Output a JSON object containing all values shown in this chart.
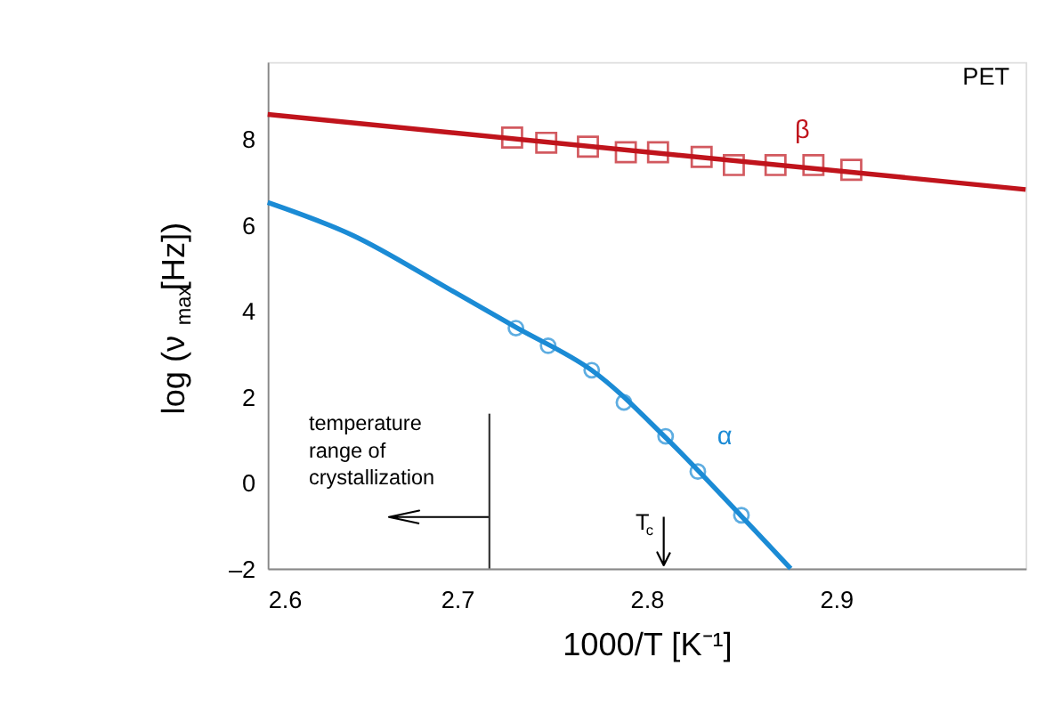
{
  "chart_data": {
    "type": "scatter",
    "xlabel": "1000/T [K⁻¹]",
    "ylabel": "log (ν$_{max}$[Hz])",
    "xlim": [
      2.6,
      3.0
    ],
    "xticks": [
      2.6,
      2.7,
      2.8,
      2.9
    ],
    "ylim": [
      -2,
      9.8
    ],
    "yticks": [
      {
        "value": -2,
        "label": "–2"
      },
      0,
      2,
      4,
      6,
      8
    ],
    "grid": false,
    "legend": false,
    "series": [
      {
        "name": "β",
        "marker": "square",
        "color": "#c0141c",
        "x": [
          2.729,
          2.747,
          2.769,
          2.789,
          2.806,
          2.829,
          2.846,
          2.868,
          2.888,
          2.908
        ],
        "values": [
          8.04,
          7.92,
          7.83,
          7.7,
          7.7,
          7.59,
          7.4,
          7.4,
          7.4,
          7.29
        ]
      },
      {
        "type": "line",
        "color": "#c0141c",
        "x": [
          2.6,
          3.0
        ],
        "values": [
          8.58,
          6.83
        ]
      },
      {
        "name": "α",
        "marker": "circle",
        "color": "#1b8bd5",
        "x": [
          2.731,
          2.748,
          2.771,
          2.788,
          2.81,
          2.827,
          2.85
        ],
        "values": [
          3.6,
          3.19,
          2.62,
          1.87,
          1.08,
          0.26,
          -0.76
        ]
      },
      {
        "type": "line",
        "color": "#1b8bd5",
        "x": [
          2.6,
          2.645,
          2.693,
          2.731,
          2.771,
          2.81,
          2.85,
          2.876
        ],
        "values": [
          6.53,
          5.76,
          4.58,
          3.62,
          2.62,
          1.05,
          -0.78,
          -2
        ]
      },
      {
        "type": "line",
        "color": "#000000",
        "x": [
          2.717,
          2.664,
          2.68,
          2.664,
          2.68
        ],
        "values": [
          -0.8,
          -0.8,
          -0.65,
          -0.8,
          -0.95
        ]
      }
    ],
    "ref_lines": [
      {
        "axis": "x",
        "value": 2.717,
        "label": "temperature range of crystallization",
        "color": "#333333"
      },
      {
        "axis": "x",
        "value": 2.809,
        "label": "T$_{c}$",
        "color": "#000000"
      }
    ],
    "annotations": [
      "PET"
    ]
  }
}
